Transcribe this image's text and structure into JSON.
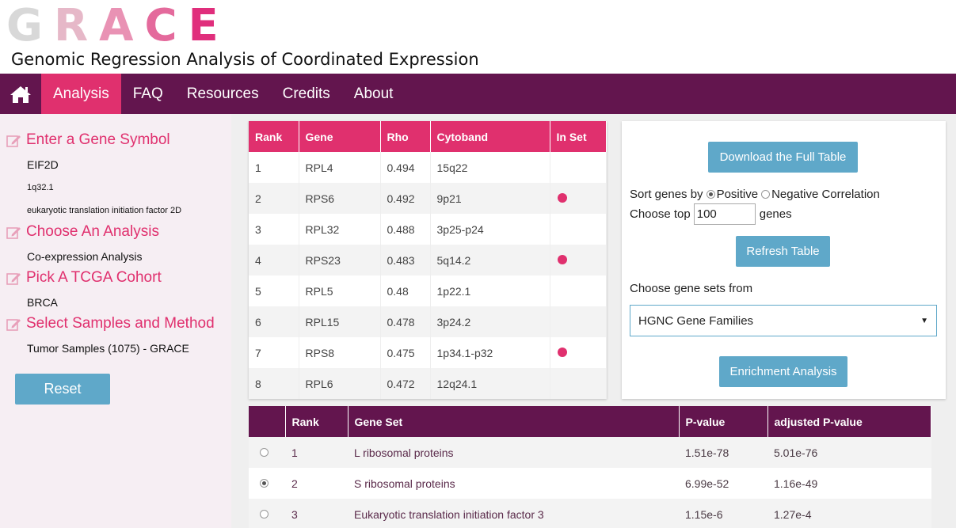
{
  "header": {
    "logo_letters": [
      "G",
      "R",
      "A",
      "C",
      "E"
    ],
    "subtitle": "Genomic Regression Analysis of Coordinated Expression"
  },
  "nav": {
    "home_icon": "home-icon",
    "items": [
      {
        "label": "Analysis",
        "active": true
      },
      {
        "label": "FAQ",
        "active": false
      },
      {
        "label": "Resources",
        "active": false
      },
      {
        "label": "Credits",
        "active": false
      },
      {
        "label": "About",
        "active": false
      }
    ]
  },
  "sidebar": {
    "gene_heading": "Enter a Gene Symbol",
    "gene_symbol": "EIF2D",
    "gene_location": "1q32.1",
    "gene_description": "eukaryotic translation initiation factor 2D",
    "analysis_heading": "Choose An Analysis",
    "analysis_value": "Co-expression Analysis",
    "cohort_heading": "Pick A TCGA Cohort",
    "cohort_value": "BRCA",
    "samples_heading": "Select Samples and Method",
    "samples_value": "Tumor Samples (1075) - GRACE",
    "reset_label": "Reset"
  },
  "gene_table": {
    "headers": [
      "Rank",
      "Gene",
      "Rho",
      "Cytoband",
      "In Set"
    ],
    "rows": [
      {
        "rank": "1",
        "gene": "RPL4",
        "rho": "0.494",
        "cytoband": "15q22",
        "in_set": false
      },
      {
        "rank": "2",
        "gene": "RPS6",
        "rho": "0.492",
        "cytoband": "9p21",
        "in_set": true
      },
      {
        "rank": "3",
        "gene": "RPL32",
        "rho": "0.488",
        "cytoband": "3p25-p24",
        "in_set": false
      },
      {
        "rank": "4",
        "gene": "RPS23",
        "rho": "0.483",
        "cytoband": "5q14.2",
        "in_set": true
      },
      {
        "rank": "5",
        "gene": "RPL5",
        "rho": "0.48",
        "cytoband": "1p22.1",
        "in_set": false
      },
      {
        "rank": "6",
        "gene": "RPL15",
        "rho": "0.478",
        "cytoband": "3p24.2",
        "in_set": false
      },
      {
        "rank": "7",
        "gene": "RPS8",
        "rho": "0.475",
        "cytoband": "1p34.1-p32",
        "in_set": true
      },
      {
        "rank": "8",
        "gene": "RPL6",
        "rho": "0.472",
        "cytoband": "12q24.1",
        "in_set": false
      }
    ],
    "in_set_color": "#e0306e"
  },
  "controls": {
    "download_label": "Download the Full Table",
    "sort_label": "Sort genes by",
    "positive_label": "Positive",
    "negative_label": "Negative Correlation",
    "sort_selected": "Positive",
    "choose_top_label": "Choose top",
    "top_value": "100",
    "genes_label": "genes",
    "refresh_label": "Refresh Table",
    "gene_sets_label": "Choose gene sets from",
    "gene_sets_selected": "HGNC Gene Families",
    "enrichment_label": "Enrichment Analysis"
  },
  "set_table": {
    "headers": [
      "",
      "Rank",
      "Gene Set",
      "P-value",
      "adjusted P-value"
    ],
    "rows": [
      {
        "selected": false,
        "rank": "1",
        "gene_set": "L ribosomal proteins",
        "pvalue": "1.51e-78",
        "adj_pvalue": "5.01e-76"
      },
      {
        "selected": true,
        "rank": "2",
        "gene_set": "S ribosomal proteins",
        "pvalue": "6.99e-52",
        "adj_pvalue": "1.16e-49"
      },
      {
        "selected": false,
        "rank": "3",
        "gene_set": "Eukaryotic translation initiation factor 3",
        "pvalue": "1.15e-6",
        "adj_pvalue": "1.27e-4"
      }
    ]
  },
  "colors": {
    "brand_purple": "#63154e",
    "brand_pink": "#e0306e",
    "button_blue": "#5fa8c9",
    "sidebar_bg": "#f6eef3"
  }
}
